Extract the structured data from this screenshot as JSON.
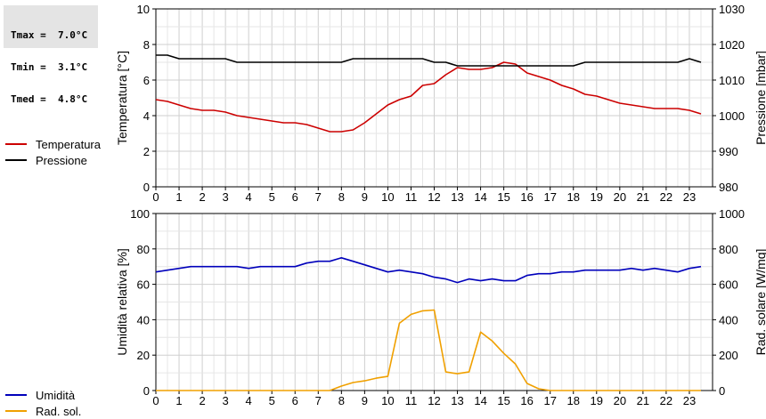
{
  "stats": {
    "lines": [
      "Tmax =  7.0°C",
      "Tmin =  3.1°C",
      "Tmed =  4.8°C"
    ]
  },
  "legend_top": [
    {
      "label": "Temperatura",
      "color": "#cc0000"
    },
    {
      "label": "Pressione",
      "color": "#000000"
    }
  ],
  "legend_bottom": [
    {
      "label": "Umidità",
      "color": "#0000bb"
    },
    {
      "label": "Rad. sol.",
      "color": "#f0a000"
    }
  ],
  "chart_data": [
    {
      "type": "line",
      "ylabel": "Temperatura [°C]",
      "ylabel_right": "Pressione [mbar]",
      "xlim": [
        0,
        24
      ],
      "ylim": [
        0,
        10
      ],
      "ylim_right": [
        980,
        1030
      ],
      "x_ticks": [
        "0",
        "1",
        "2",
        "3",
        "4",
        "5",
        "6",
        "7",
        "8",
        "9",
        "10",
        "11",
        "12",
        "13",
        "14",
        "15",
        "16",
        "17",
        "18",
        "19",
        "20",
        "21",
        "22",
        "23"
      ],
      "y_ticks": [
        "0",
        "2",
        "4",
        "6",
        "8",
        "10"
      ],
      "y_ticks_right": [
        "980",
        "990",
        "1000",
        "1010",
        "1020",
        "1030"
      ],
      "grid": true,
      "series": [
        {
          "name": "Temperatura",
          "color": "#cc0000",
          "axis": "left",
          "x": [
            0,
            0.5,
            1,
            1.5,
            2,
            2.5,
            3,
            3.5,
            4,
            4.5,
            5,
            5.5,
            6,
            6.5,
            7,
            7.5,
            8,
            8.5,
            9,
            9.5,
            10,
            10.5,
            11,
            11.5,
            12,
            12.5,
            13,
            13.5,
            14,
            14.5,
            15,
            15.5,
            16,
            16.5,
            17,
            17.5,
            18,
            18.5,
            19,
            19.5,
            20,
            20.5,
            21,
            21.5,
            22,
            22.5,
            23,
            23.5
          ],
          "values": [
            4.9,
            4.8,
            4.6,
            4.4,
            4.3,
            4.3,
            4.2,
            4.0,
            3.9,
            3.8,
            3.7,
            3.6,
            3.6,
            3.5,
            3.3,
            3.1,
            3.1,
            3.2,
            3.6,
            4.1,
            4.6,
            4.9,
            5.1,
            5.7,
            5.8,
            6.3,
            6.7,
            6.6,
            6.6,
            6.7,
            7.0,
            6.9,
            6.4,
            6.2,
            6.0,
            5.7,
            5.5,
            5.2,
            5.1,
            4.9,
            4.7,
            4.6,
            4.5,
            4.4,
            4.4,
            4.4,
            4.3,
            4.1
          ]
        },
        {
          "name": "Pressione",
          "color": "#000000",
          "axis": "right",
          "x": [
            0,
            0.5,
            1,
            1.5,
            2,
            2.5,
            3,
            3.5,
            4,
            4.5,
            5,
            5.5,
            6,
            6.5,
            7,
            7.5,
            8,
            8.5,
            9,
            9.5,
            10,
            10.5,
            11,
            11.5,
            12,
            12.5,
            13,
            13.5,
            14,
            14.5,
            15,
            15.5,
            16,
            16.5,
            17,
            17.5,
            18,
            18.5,
            19,
            19.5,
            20,
            20.5,
            21,
            21.5,
            22,
            22.5,
            23,
            23.5
          ],
          "values": [
            1017,
            1017,
            1016,
            1016,
            1016,
            1016,
            1016,
            1015,
            1015,
            1015,
            1015,
            1015,
            1015,
            1015,
            1015,
            1015,
            1015,
            1016,
            1016,
            1016,
            1016,
            1016,
            1016,
            1016,
            1015,
            1015,
            1014,
            1014,
            1014,
            1014,
            1014,
            1014,
            1014,
            1014,
            1014,
            1014,
            1014,
            1015,
            1015,
            1015,
            1015,
            1015,
            1015,
            1015,
            1015,
            1015,
            1016,
            1015
          ]
        }
      ]
    },
    {
      "type": "line",
      "ylabel": "Umidità relativa [%]",
      "ylabel_right": "Rad. solare [W/mq]",
      "xlim": [
        0,
        24
      ],
      "ylim": [
        0,
        100
      ],
      "ylim_right": [
        0,
        1000
      ],
      "x_ticks": [
        "0",
        "1",
        "2",
        "3",
        "4",
        "5",
        "6",
        "7",
        "8",
        "9",
        "10",
        "11",
        "12",
        "13",
        "14",
        "15",
        "16",
        "17",
        "18",
        "19",
        "20",
        "21",
        "22",
        "23"
      ],
      "y_ticks": [
        "0",
        "20",
        "40",
        "60",
        "80",
        "100"
      ],
      "y_ticks_right": [
        "0",
        "200",
        "400",
        "600",
        "800",
        "1000"
      ],
      "grid": true,
      "series": [
        {
          "name": "Umidità",
          "color": "#0000bb",
          "axis": "left",
          "x": [
            0,
            0.5,
            1,
            1.5,
            2,
            2.5,
            3,
            3.5,
            4,
            4.5,
            5,
            5.5,
            6,
            6.5,
            7,
            7.5,
            8,
            8.5,
            9,
            9.5,
            10,
            10.5,
            11,
            11.5,
            12,
            12.5,
            13,
            13.5,
            14,
            14.5,
            15,
            15.5,
            16,
            16.5,
            17,
            17.5,
            18,
            18.5,
            19,
            19.5,
            20,
            20.5,
            21,
            21.5,
            22,
            22.5,
            23,
            23.5
          ],
          "values": [
            67,
            68,
            69,
            70,
            70,
            70,
            70,
            70,
            69,
            70,
            70,
            70,
            70,
            72,
            73,
            73,
            75,
            73,
            71,
            69,
            67,
            68,
            67,
            66,
            64,
            63,
            61,
            63,
            62,
            63,
            62,
            62,
            65,
            66,
            66,
            67,
            67,
            68,
            68,
            68,
            68,
            69,
            68,
            69,
            68,
            67,
            69,
            70
          ]
        },
        {
          "name": "Rad. sol.",
          "color": "#f0a000",
          "axis": "right",
          "x": [
            0,
            1,
            2,
            3,
            4,
            5,
            6,
            7,
            7.5,
            8,
            8.5,
            9,
            9.5,
            10,
            10.5,
            11,
            11.5,
            12,
            12.5,
            13,
            13.5,
            14,
            14.5,
            15,
            15.5,
            16,
            16.5,
            17,
            18,
            19,
            20,
            21,
            22,
            23,
            23.5
          ],
          "values": [
            0,
            0,
            0,
            0,
            0,
            0,
            0,
            0,
            0,
            25,
            45,
            55,
            70,
            80,
            380,
            430,
            450,
            455,
            105,
            95,
            105,
            330,
            280,
            210,
            150,
            40,
            10,
            0,
            0,
            0,
            0,
            0,
            0,
            0,
            0
          ]
        }
      ]
    }
  ]
}
